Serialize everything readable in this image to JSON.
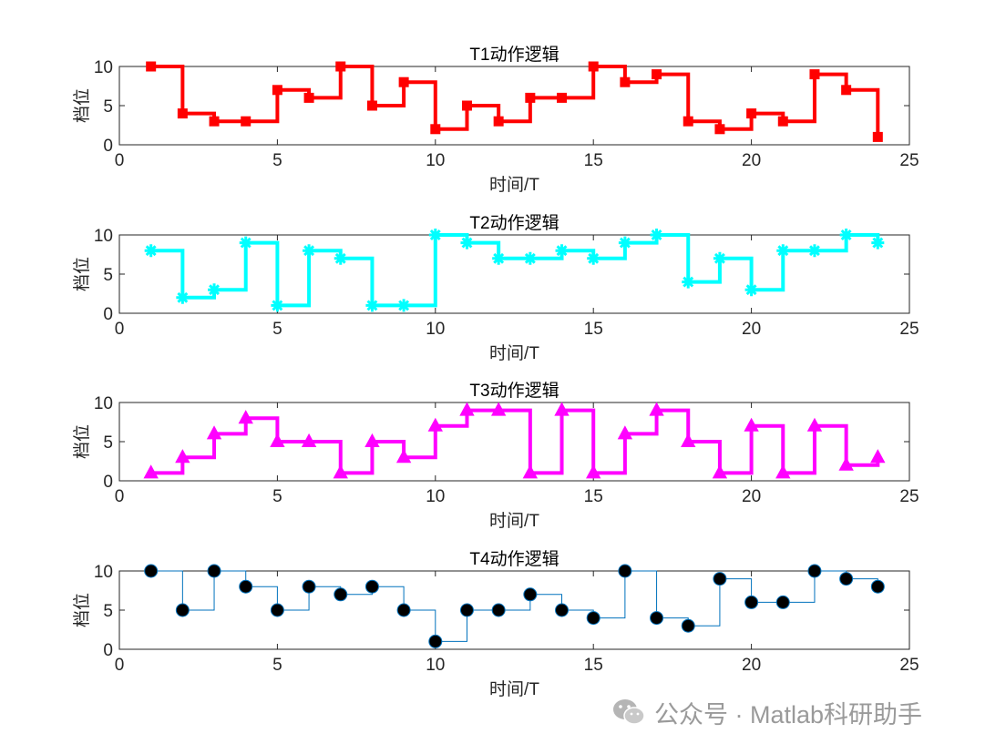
{
  "watermark": {
    "text": "公众号 · Matlab科研助手"
  },
  "chart_data": [
    {
      "type": "line",
      "style": "stairs",
      "title": "T1动作逻辑",
      "xlabel": "时间/T",
      "ylabel": "档位",
      "xlim": [
        0,
        25
      ],
      "ylim": [
        0,
        10
      ],
      "xticks": [
        0,
        5,
        10,
        15,
        20,
        25
      ],
      "yticks": [
        0,
        5,
        10
      ],
      "color": "#ff0000",
      "marker": "square",
      "line_weight": "thick",
      "x": [
        1,
        2,
        3,
        4,
        5,
        6,
        7,
        8,
        9,
        10,
        11,
        12,
        13,
        14,
        15,
        16,
        17,
        18,
        19,
        20,
        21,
        22,
        23,
        24
      ],
      "values": [
        10,
        4,
        3,
        3,
        7,
        6,
        10,
        5,
        8,
        2,
        5,
        3,
        6,
        6,
        10,
        8,
        9,
        3,
        2,
        4,
        3,
        9,
        7,
        1
      ]
    },
    {
      "type": "line",
      "style": "stairs",
      "title": "T2动作逻辑",
      "xlabel": "时间/T",
      "ylabel": "档位",
      "xlim": [
        0,
        25
      ],
      "ylim": [
        0,
        10
      ],
      "xticks": [
        0,
        5,
        10,
        15,
        20,
        25
      ],
      "yticks": [
        0,
        5,
        10
      ],
      "color": "#00ffff",
      "marker": "asterisk",
      "line_weight": "thick",
      "x": [
        1,
        2,
        3,
        4,
        5,
        6,
        7,
        8,
        9,
        10,
        11,
        12,
        13,
        14,
        15,
        16,
        17,
        18,
        19,
        20,
        21,
        22,
        23,
        24
      ],
      "values": [
        8,
        2,
        3,
        9,
        1,
        8,
        7,
        1,
        1,
        10,
        9,
        7,
        7,
        8,
        7,
        9,
        10,
        4,
        7,
        3,
        8,
        8,
        10,
        9
      ]
    },
    {
      "type": "line",
      "style": "stairs",
      "title": "T3动作逻辑",
      "xlabel": "时间/T",
      "ylabel": "档位",
      "xlim": [
        0,
        25
      ],
      "ylim": [
        0,
        10
      ],
      "xticks": [
        0,
        5,
        10,
        15,
        20,
        25
      ],
      "yticks": [
        0,
        5,
        10
      ],
      "color": "#ff00ff",
      "marker": "triangle",
      "line_weight": "thick",
      "x": [
        1,
        2,
        3,
        4,
        5,
        6,
        7,
        8,
        9,
        10,
        11,
        12,
        13,
        14,
        15,
        16,
        17,
        18,
        19,
        20,
        21,
        22,
        23,
        24
      ],
      "values": [
        1,
        3,
        6,
        8,
        5,
        5,
        1,
        5,
        3,
        7,
        9,
        9,
        1,
        9,
        1,
        6,
        9,
        5,
        1,
        7,
        1,
        7,
        2,
        3
      ]
    },
    {
      "type": "line",
      "style": "stairs",
      "title": "T4动作逻辑",
      "xlabel": "时间/T",
      "ylabel": "档位",
      "xlim": [
        0,
        25
      ],
      "ylim": [
        0,
        10
      ],
      "xticks": [
        0,
        5,
        10,
        15,
        20,
        25
      ],
      "yticks": [
        0,
        5,
        10
      ],
      "color": "#0072bd",
      "marker_color": "#000000",
      "marker": "circle",
      "line_weight": "thin",
      "x": [
        1,
        2,
        3,
        4,
        5,
        6,
        7,
        8,
        9,
        10,
        11,
        12,
        13,
        14,
        15,
        16,
        17,
        18,
        19,
        20,
        21,
        22,
        23,
        24
      ],
      "values": [
        10,
        5,
        10,
        8,
        5,
        8,
        7,
        8,
        5,
        1,
        5,
        5,
        7,
        5,
        4,
        10,
        4,
        3,
        9,
        6,
        6,
        10,
        9,
        8
      ]
    }
  ]
}
